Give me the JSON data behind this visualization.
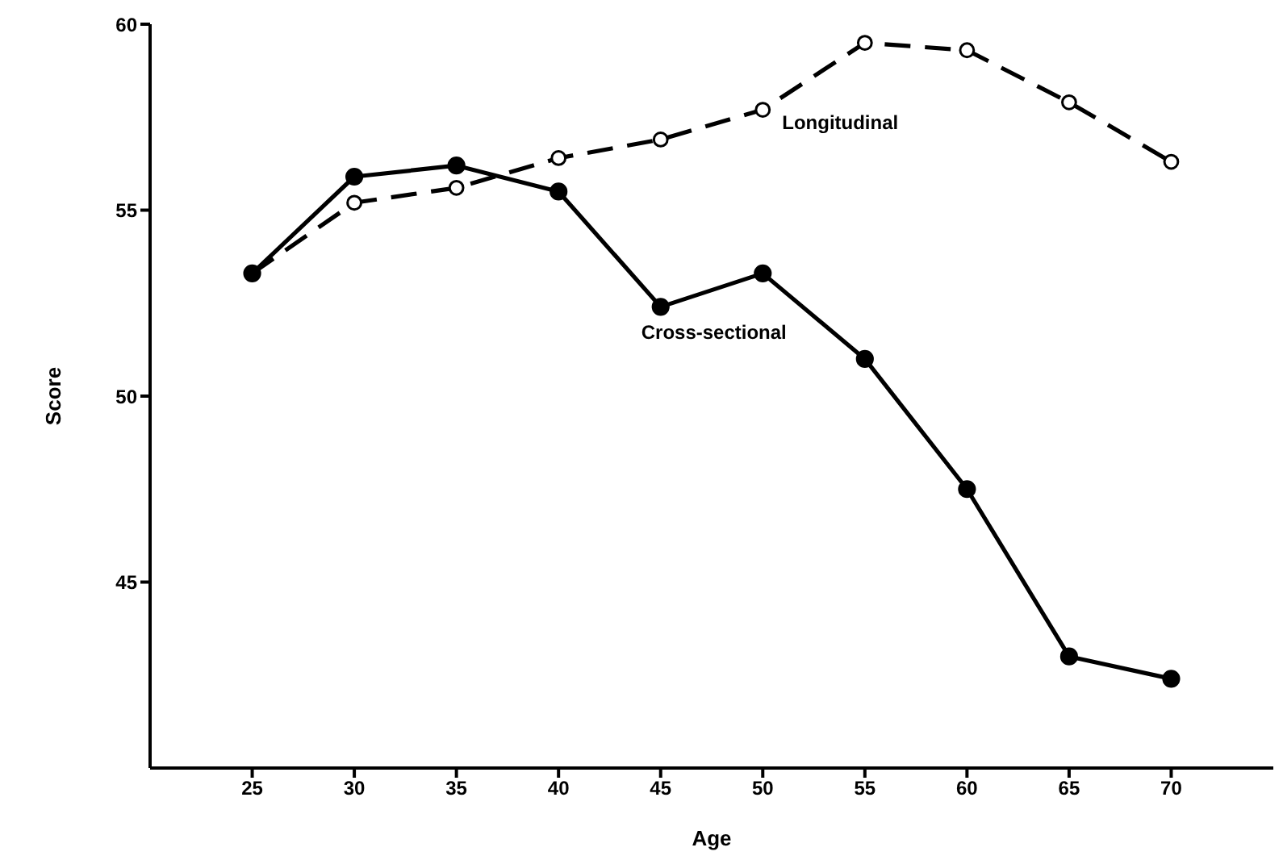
{
  "chart_data": {
    "type": "line",
    "xlabel": "Age",
    "ylabel": "Score",
    "x": [
      25,
      30,
      35,
      40,
      45,
      50,
      55,
      60,
      65,
      70
    ],
    "xlim": [
      20,
      75
    ],
    "xticks": [
      25,
      30,
      35,
      40,
      45,
      50,
      55,
      60,
      65,
      70
    ],
    "ylim": [
      40,
      60
    ],
    "yticks": [
      45,
      50,
      55,
      60
    ],
    "grid": false,
    "legend": false,
    "marker": "circle",
    "series": [
      {
        "name": "Longitudinal",
        "color": "#000000",
        "line_style": "dashed",
        "values": [
          53.3,
          55.2,
          55.6,
          56.4,
          56.9,
          57.7,
          59.5,
          59.3,
          57.9,
          56.3
        ]
      },
      {
        "name": "Cross-sectional",
        "color": "#000000",
        "line_style": "solid",
        "values": [
          53.3,
          55.9,
          56.2,
          55.5,
          52.4,
          53.3,
          51.0,
          47.5,
          43.0,
          42.4
        ]
      }
    ]
  }
}
